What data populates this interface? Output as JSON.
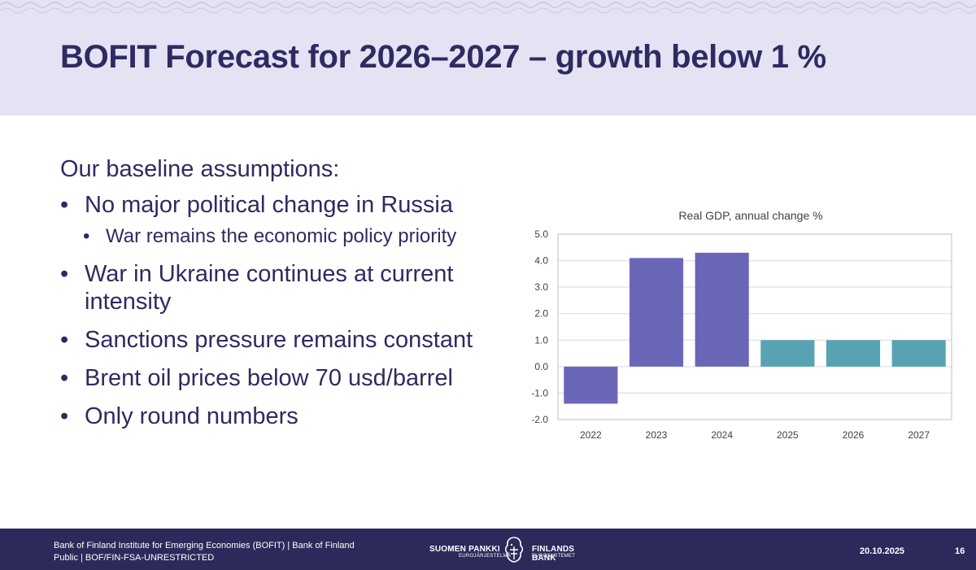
{
  "slide": {
    "title": "BOFIT Forecast for 2026–2027 – growth below 1 %",
    "intro": "Our baseline assumptions:",
    "bullets": [
      {
        "text": "No major political change in Russia"
      },
      {
        "text": "War remains the economic policy priority"
      },
      {
        "text": "War in Ukraine continues at current intensity"
      },
      {
        "text": "Sanctions pressure remains constant"
      },
      {
        "text": "Brent oil prices below 70 usd/barrel"
      },
      {
        "text": "Only round numbers"
      }
    ]
  },
  "footer": {
    "line1": "Bank of Finland Institute for Emerging Economies (BOFIT) | Bank of Finland",
    "line2": "Public | BOF/FIN-FSA-UNRESTRICTED",
    "logo_fi": "SUOMEN PANKKI",
    "logo_fi_sub": "EUROJÄRJESTELMÄ",
    "logo_sv": "FINLANDS BANK",
    "logo_sv_sub": "EUROSYSTEMET",
    "date": "20.10.2025",
    "page": "16"
  },
  "colors": {
    "actual_bar": "#6b67b8",
    "forecast_bar": "#58a3b3",
    "title_band": "#e4e2f3",
    "footer": "#2c2a5a",
    "text": "#2e2b60"
  },
  "chart_data": {
    "type": "bar",
    "title": "Real GDP, annual change %",
    "categories": [
      "2022",
      "2023",
      "2024",
      "2025",
      "2026",
      "2027"
    ],
    "values": [
      -1.4,
      4.1,
      4.3,
      1.0,
      1.0,
      1.0
    ],
    "bar_kind": [
      "actual",
      "actual",
      "actual",
      "forecast",
      "forecast",
      "forecast"
    ],
    "ylim": [
      -2.0,
      5.0
    ],
    "yticks": [
      5.0,
      4.0,
      3.0,
      2.0,
      1.0,
      0.0,
      -1.0,
      -2.0
    ],
    "ytick_labels": [
      "5.0",
      "4.0",
      "3.0",
      "2.0",
      "1.0",
      "0.0",
      "-1.0",
      "-2.0"
    ],
    "grid": true,
    "xlabel": "",
    "ylabel": ""
  }
}
